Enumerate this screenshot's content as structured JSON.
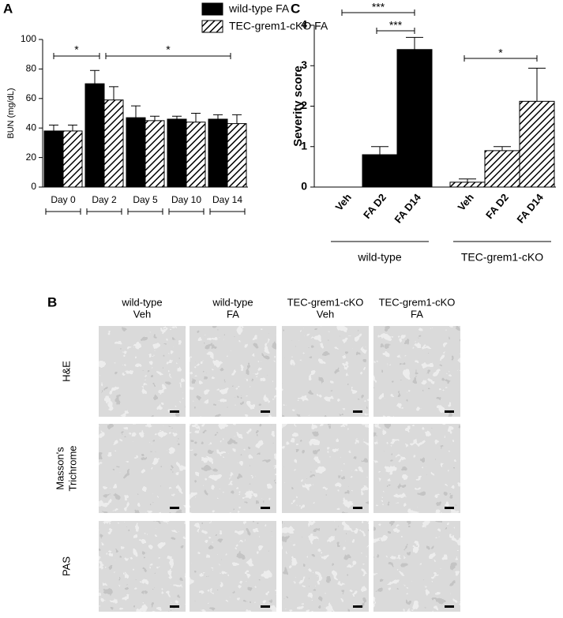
{
  "chart_data": [
    {
      "type": "bar",
      "label": "A",
      "categories": [
        "Day 0",
        "Day 2",
        "Day 5",
        "Day 10",
        "Day 14"
      ],
      "series": [
        {
          "name": "wild-type FA",
          "color": "#000000",
          "pattern": "solid",
          "values": [
            38,
            70,
            47,
            46,
            46
          ],
          "errors": [
            4,
            9,
            8,
            2,
            3
          ]
        },
        {
          "name": "TEC-grem1-cKO FA",
          "color": "#000000",
          "pattern": "hatch",
          "values": [
            38,
            59,
            45,
            44,
            43
          ],
          "errors": [
            4,
            9,
            3,
            6,
            6
          ]
        }
      ],
      "ylabel": "BUN (mg/dL)",
      "ylim": [
        0,
        100
      ],
      "yticks": [
        0,
        20,
        40,
        60,
        80,
        100
      ],
      "annotations": [
        {
          "text": "*",
          "from": "Day 0",
          "to": "Day 2"
        },
        {
          "text": "*",
          "from": "Day 2",
          "to": "Day 14"
        }
      ]
    },
    {
      "type": "grouped-bar",
      "label": "C",
      "groups": [
        {
          "name": "wild-type",
          "pattern": "solid",
          "color": "#000000",
          "categories": [
            "Veh",
            "FA D2",
            "FA D14"
          ],
          "values": [
            0,
            0.8,
            3.4
          ],
          "errors": [
            0,
            0.2,
            0.3
          ]
        },
        {
          "name": "TEC-grem1-cKO",
          "pattern": "hatch",
          "color": "#000000",
          "categories": [
            "Veh",
            "FA D2",
            "FA D14"
          ],
          "values": [
            0.12,
            0.9,
            2.12
          ],
          "errors": [
            0.08,
            0.1,
            0.82
          ]
        }
      ],
      "ylabel": "Severity score",
      "ylim": [
        0,
        4
      ],
      "yticks": [
        0,
        1,
        2,
        3,
        4
      ],
      "annotations": [
        {
          "text": "***",
          "group": "wild-type",
          "from": "Veh",
          "to": "FA D14"
        },
        {
          "text": "***",
          "group": "wild-type",
          "from": "FA D2",
          "to": "FA D14"
        },
        {
          "text": "*",
          "group": "TEC-grem1-cKO",
          "from": "Veh",
          "to": "FA D14"
        }
      ]
    }
  ],
  "panel_b": {
    "label": "B",
    "columns": [
      [
        "wild-type",
        "Veh"
      ],
      [
        "wild-type",
        "FA"
      ],
      [
        "TEC-grem1-cKO",
        "Veh"
      ],
      [
        "TEC-grem1-cKO",
        "FA"
      ]
    ],
    "rows": [
      [
        "H&E"
      ],
      [
        "Masson's",
        "Trichrome"
      ],
      [
        "PAS"
      ]
    ]
  }
}
